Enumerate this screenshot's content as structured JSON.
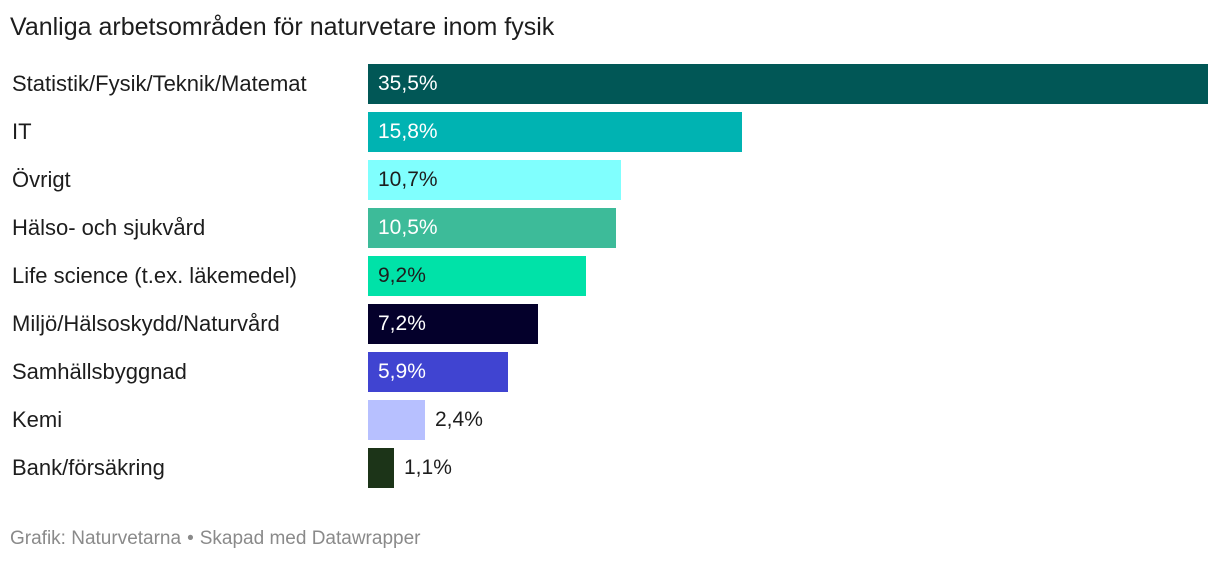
{
  "chart_data": {
    "type": "bar",
    "orientation": "horizontal",
    "title": "Vanliga arbetsområden för naturvetare inom fysik",
    "categories": [
      "Statistik/Fysik/Teknik/Matemat",
      "IT",
      "Övrigt",
      "Hälso- och sjukvård",
      "Life science (t.ex. läkemedel)",
      "Miljö/Hälsoskydd/Naturvård",
      "Samhällsbyggnad",
      "Kemi",
      "Bank/försäkring"
    ],
    "values": [
      35.5,
      15.8,
      10.7,
      10.5,
      9.2,
      7.2,
      5.9,
      2.4,
      1.1
    ],
    "value_labels": [
      "35,5%",
      "15,8%",
      "10,7%",
      "10,5%",
      "9,2%",
      "7,2%",
      "5,9%",
      "2,4%",
      "1,1%"
    ],
    "colors": [
      "#015756",
      "#00b3b2",
      "#80fffe",
      "#3dbb99",
      "#00e2a8",
      "#04002b",
      "#4044d1",
      "#b7c0ff",
      "#1c3418"
    ],
    "label_colors": [
      "#ffffff",
      "#ffffff",
      "#1d1d1d",
      "#ffffff",
      "#1d1d1d",
      "#ffffff",
      "#ffffff",
      "#1d1d1d",
      "#1d1d1d"
    ],
    "xlim": [
      0,
      35.5
    ],
    "grid": false,
    "legend": "none"
  },
  "footer": {
    "source": "Grafik: Naturvetarna",
    "separator": "•",
    "credit": "Skapad med Datawrapper"
  }
}
